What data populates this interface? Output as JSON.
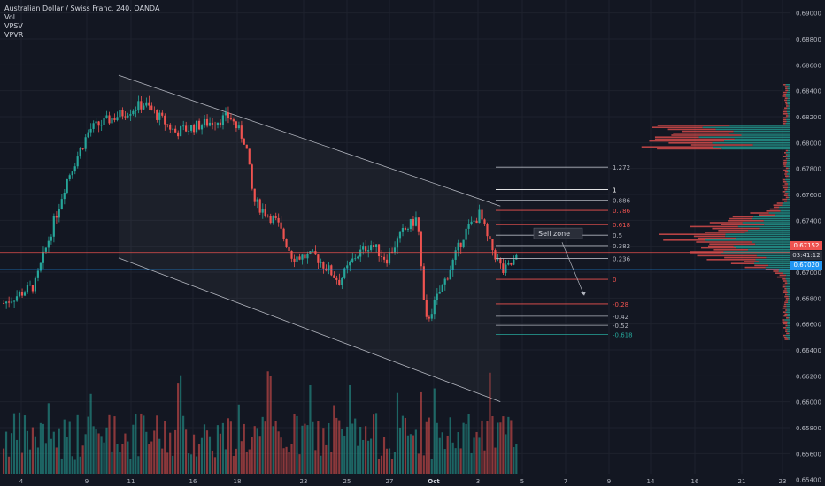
{
  "legend": {
    "title": "Australian Dollar / Swiss Franc, 240, OANDA",
    "indicators": [
      "Vol",
      "VPSV",
      "VPVR"
    ]
  },
  "annotation": {
    "text": "Sell zone"
  },
  "price_badges": {
    "last": "0.67152",
    "countdown": "03:41:12",
    "line": "0.67020"
  },
  "colors": {
    "up": "#26a69a",
    "down": "#ef5350",
    "background": "#131722",
    "grid": "#1e222d",
    "channel": "#b2b5be",
    "h_line_red": "#ef5350",
    "h_line_blue": "#2196f3"
  },
  "chart_data": {
    "type": "candlestick",
    "y_axis": {
      "ticks": [
        "0.69000",
        "0.68800",
        "0.68600",
        "0.68400",
        "0.68200",
        "0.68000",
        "0.67800",
        "0.67600",
        "0.67400",
        "0.67200",
        "0.67000",
        "0.66800",
        "0.66600",
        "0.66400",
        "0.66200",
        "0.66000",
        "0.65800",
        "0.65600",
        "0.65400"
      ],
      "range": [
        0.6535,
        0.691
      ]
    },
    "x_axis": {
      "ticks": [
        "4",
        "9",
        "11",
        "16",
        "18",
        "23",
        "25",
        "27",
        "Oct",
        "3",
        "5",
        "7",
        "9",
        "14",
        "16",
        "21",
        "23"
      ]
    },
    "fibonacci": [
      {
        "label": "1.272",
        "value": 0.6781,
        "color": "#b2b5be"
      },
      {
        "label": "1",
        "value": 0.67638,
        "color": "#ffffff"
      },
      {
        "label": "0.886",
        "value": 0.67555,
        "color": "#b2b5be"
      },
      {
        "label": "0.786",
        "value": 0.67477,
        "color": "#ef5350"
      },
      {
        "label": "0.618",
        "value": 0.67367,
        "color": "#ef5350"
      },
      {
        "label": "0.5",
        "value": 0.67285,
        "color": "#b2b5be"
      },
      {
        "label": "0.382",
        "value": 0.67205,
        "color": "#b2b5be"
      },
      {
        "label": "0.236",
        "value": 0.67106,
        "color": "#b2b5be"
      },
      {
        "label": "0",
        "value": 0.66945,
        "color": "#ef5350"
      },
      {
        "label": "-0.28",
        "value": 0.66755,
        "color": "#ef5350"
      },
      {
        "label": "-0.42",
        "value": 0.6666,
        "color": "#b2b5be"
      },
      {
        "label": "-0.52",
        "value": 0.6659,
        "color": "#b2b5be"
      },
      {
        "label": "-0.618",
        "value": 0.6652,
        "color": "#26a69a"
      }
    ],
    "horizontal_lines": [
      {
        "value": 0.67152,
        "color": "#ef5350"
      },
      {
        "value": 0.6702,
        "color": "#2196f3"
      }
    ],
    "channel": {
      "upper": [
        [
          0.15,
          0.6852
        ],
        [
          0.633,
          0.6751
        ]
      ],
      "lower": [
        [
          0.15,
          0.6711
        ],
        [
          0.633,
          0.66
        ]
      ]
    },
    "candles_seed": {
      "start": 0.668,
      "count": 195,
      "x_start": 0.003,
      "x_end": 0.655
    },
    "waypoints": [
      [
        0,
        0.6676
      ],
      [
        0.04,
        0.669
      ],
      [
        0.08,
        0.677
      ],
      [
        0.11,
        0.681
      ],
      [
        0.15,
        0.6822
      ],
      [
        0.18,
        0.683
      ],
      [
        0.22,
        0.6808
      ],
      [
        0.26,
        0.6815
      ],
      [
        0.29,
        0.682
      ],
      [
        0.31,
        0.68
      ],
      [
        0.32,
        0.6755
      ],
      [
        0.35,
        0.6738
      ],
      [
        0.37,
        0.6712
      ],
      [
        0.4,
        0.6712
      ],
      [
        0.43,
        0.6693
      ],
      [
        0.45,
        0.6712
      ],
      [
        0.47,
        0.6722
      ],
      [
        0.49,
        0.671
      ],
      [
        0.51,
        0.673
      ],
      [
        0.53,
        0.6742
      ],
      [
        0.54,
        0.666
      ],
      [
        0.57,
        0.67
      ],
      [
        0.59,
        0.673
      ],
      [
        0.61,
        0.6745
      ],
      [
        0.62,
        0.6725
      ],
      [
        0.64,
        0.67
      ],
      [
        0.66,
        0.6712
      ]
    ]
  }
}
